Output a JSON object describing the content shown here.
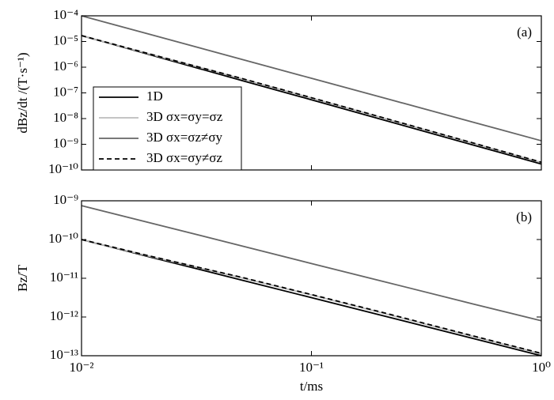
{
  "chart_data": [
    {
      "type": "line",
      "panel_label": "(a)",
      "ylabel": "dBz/dt /(T·s⁻¹)",
      "log_scale": true,
      "legend": "lower left",
      "x": [
        0.01,
        0.02,
        0.05,
        0.1,
        0.2,
        0.5,
        1
      ],
      "xlim": [
        0.01,
        1
      ],
      "ylim": [
        1e-10,
        0.0001
      ],
      "yticks": [
        {
          "value": 1e-10,
          "label": "10⁻¹⁰"
        },
        {
          "value": 1e-09,
          "label": "10⁻⁹"
        },
        {
          "value": 1e-08,
          "label": "10⁻⁸"
        },
        {
          "value": 1e-07,
          "label": "10⁻⁷"
        },
        {
          "value": 1e-06,
          "label": "10⁻⁶"
        },
        {
          "value": 1e-05,
          "label": "10⁻⁵"
        },
        {
          "value": 0.0001,
          "label": "10⁻⁴"
        }
      ],
      "series": [
        {
          "name": "1D",
          "color": "#000000",
          "style": "solid",
          "values": [
            1.7e-05,
            3e-06,
            3e-07,
            5.4e-08,
            9.5e-09,
            9.6e-10,
            1.7e-10
          ]
        },
        {
          "name": "3D σx=σy=σz",
          "color": "#bbbbbb",
          "style": "solid",
          "values": [
            1.7e-05,
            3.15e-06,
            3.5e-07,
            6.3e-08,
            1.12e-08,
            1.12e-09,
            1.95e-10
          ]
        },
        {
          "name": "3D σx=σz≠σy",
          "color": "#666666",
          "style": "solid",
          "values": [
            0.0001,
            1.86e-05,
            2e-06,
            3.7e-07,
            6.9e-08,
            7.4e-09,
            1.37e-09
          ]
        },
        {
          "name": "3D σx=σy≠σz",
          "color": "#000000",
          "style": "dashed",
          "values": [
            1.7e-05,
            3.2e-06,
            3.6e-07,
            6.5e-08,
            1.15e-08,
            1.15e-09,
            2e-10
          ]
        }
      ]
    },
    {
      "type": "line",
      "panel_label": "(b)",
      "ylabel": "Bz/T",
      "xlabel": "t/ms",
      "log_scale": true,
      "x": [
        0.01,
        0.02,
        0.05,
        0.1,
        0.2,
        0.5,
        1
      ],
      "xlim": [
        0.01,
        1
      ],
      "xticks": [
        {
          "value": 0.01,
          "label": "10⁻²"
        },
        {
          "value": 0.1,
          "label": "10⁻¹"
        },
        {
          "value": 1,
          "label": "10⁰"
        }
      ],
      "ylim": [
        1e-13,
        1e-09
      ],
      "yticks": [
        {
          "value": 1e-13,
          "label": "10⁻¹³"
        },
        {
          "value": 1e-12,
          "label": "10⁻¹²"
        },
        {
          "value": 1e-11,
          "label": "10⁻¹¹"
        },
        {
          "value": 1e-10,
          "label": "10⁻¹⁰"
        },
        {
          "value": 1e-09,
          "label": "10⁻⁹"
        }
      ],
      "series": [
        {
          "color": "#000000",
          "style": "solid",
          "values": [
            1e-10,
            3.5e-11,
            8.9e-12,
            3.16e-12,
            1.12e-12,
            2.83e-13,
            1e-13
          ]
        },
        {
          "color": "#bbbbbb",
          "style": "solid",
          "values": [
            1e-10,
            3.65e-11,
            1.02e-11,
            3.7e-12,
            1.3e-12,
            3.2e-13,
            1.12e-13
          ]
        },
        {
          "color": "#666666",
          "style": "solid",
          "values": [
            7.5e-10,
            2.67e-10,
            6.8e-11,
            2.4e-11,
            8.6e-12,
            2.2e-12,
            8e-13
          ]
        },
        {
          "color": "#000000",
          "style": "dashed",
          "values": [
            1e-10,
            3.7e-11,
            1.05e-11,
            3.8e-12,
            1.35e-12,
            3.3e-13,
            1.15e-13
          ]
        }
      ]
    }
  ]
}
